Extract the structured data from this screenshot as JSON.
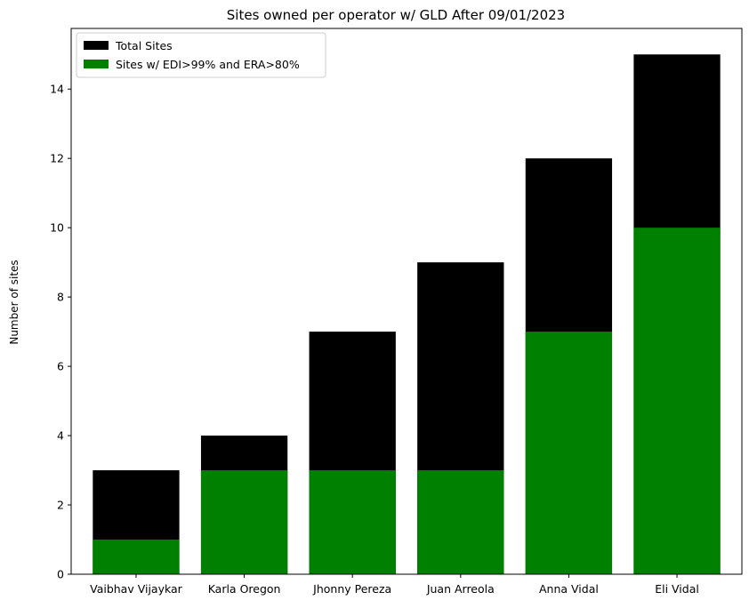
{
  "chart_data": {
    "type": "bar",
    "stacked": false,
    "overlaid": true,
    "title": "Sites owned per operator w/ GLD After 09/01/2023",
    "xlabel": "",
    "ylabel": "Number of sites",
    "categories": [
      "Vaibhav Vijaykar",
      "Karla Oregon",
      "Jhonny Pereza",
      "Juan  Arreola",
      "Anna Vidal",
      "Eli Vidal"
    ],
    "series": [
      {
        "name": "Total Sites",
        "color": "#000000",
        "values": [
          3,
          4,
          7,
          9,
          12,
          15
        ]
      },
      {
        "name": "Sites w/ EDI>99% and ERA>80%",
        "color": "#008000",
        "values": [
          1,
          3,
          3,
          3,
          7,
          10
        ]
      }
    ],
    "ylim": [
      0,
      15.75
    ],
    "yticks": [
      0,
      2,
      4,
      6,
      8,
      10,
      12,
      14
    ],
    "grid": false,
    "legend_position": "top-left"
  }
}
